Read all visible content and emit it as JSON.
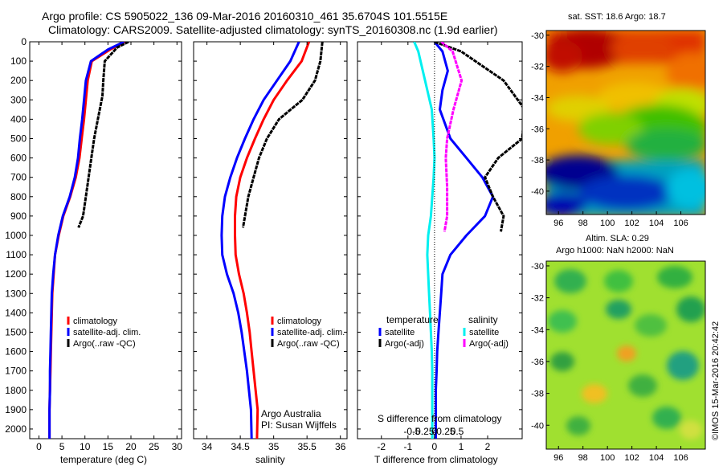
{
  "titles": {
    "line1": "Argo profile: CS 5905022_136 09-Mar-2016 20160310_461 35.6704S 101.5515E",
    "line2": "Climatology: CARS2009. Satellite-adjusted climatology: synTS_20160308.nc (1.9d earlier)"
  },
  "colors": {
    "climatology": "#ff0000",
    "satellite": "#0000ff",
    "argo": "#000000",
    "s_satellite": "#00f0f0",
    "s_argo": "#ff00ff"
  },
  "depth_ticks": [
    "0",
    "100",
    "200",
    "300",
    "400",
    "500",
    "600",
    "700",
    "800",
    "900",
    "1000",
    "1100",
    "1200",
    "1300",
    "1400",
    "1500",
    "1600",
    "1700",
    "1800",
    "1900",
    "2000"
  ],
  "temp_panel": {
    "xlabel": "temperature (deg C)",
    "xticks": [
      "0",
      "5",
      "10",
      "15",
      "20",
      "25",
      "30"
    ],
    "legend": [
      "climatology",
      "satellite-adj. clim.",
      "Argo(..raw -QC)"
    ]
  },
  "sal_panel": {
    "xlabel": "salinity",
    "xticks": [
      "34",
      "34.5",
      "35",
      "35.5",
      "36"
    ],
    "legend": [
      "climatology",
      "satellite-adj. clim.",
      "Argo(..raw -QC)"
    ],
    "credit1": "Argo Australia",
    "credit2": "PI: Susan Wijffels"
  },
  "diff_panel": {
    "xlabel": "T difference from climatology",
    "xticks": [
      "-2",
      "-1",
      "0",
      "1",
      "2"
    ],
    "top_label": "S difference from climatology",
    "top_ticks": [
      "-0.5",
      "-0.25",
      "0",
      "0.25",
      "0.5"
    ],
    "legend_t_title": "temperature",
    "legend_s_title": "salinity",
    "legend_t": [
      "satellite",
      "Argo(-adj)"
    ],
    "legend_s": [
      "satellite",
      "Argo(-adj)"
    ]
  },
  "sst_map": {
    "title": "sat. SST: 18.6 Argo: 18.7",
    "yticks": [
      "-30",
      "-32",
      "-34",
      "-36",
      "-38",
      "-40"
    ],
    "xticks": [
      "96",
      "98",
      "100",
      "102",
      "104",
      "106"
    ]
  },
  "sla_map": {
    "title1": "Altim. SLA: 0.29",
    "title2": "Argo h1000: NaN h2000: NaN",
    "yticks": [
      "-30",
      "-32",
      "-34",
      "-36",
      "-38",
      "-40"
    ],
    "xticks": [
      "96",
      "98",
      "100",
      "102",
      "104",
      "106"
    ]
  },
  "watermark": "©IMOS 15-Mar-2016 20:42:42",
  "chart_data": [
    {
      "type": "line",
      "title": "",
      "xlabel": "temperature (deg C)",
      "ylabel": "",
      "xlim": [
        -2,
        31
      ],
      "ylim": [
        2050,
        0
      ],
      "series": [
        {
          "name": "climatology",
          "x": [
            18.8,
            15.5,
            11.5,
            10.6,
            10.2,
            9.8,
            9.3,
            8.8,
            8.0,
            6.8,
            5.3,
            4.3,
            3.5,
            3.2,
            2.9,
            2.8,
            2.7,
            2.6,
            2.5,
            2.4,
            2.3,
            2.3
          ],
          "y": [
            0,
            40,
            100,
            200,
            300,
            400,
            500,
            600,
            700,
            800,
            900,
            1000,
            1100,
            1200,
            1300,
            1400,
            1500,
            1600,
            1700,
            1800,
            1900,
            2050
          ]
        },
        {
          "name": "satellite-adj. clim.",
          "x": [
            18.5,
            15.0,
            11.3,
            10.2,
            9.8,
            9.4,
            8.9,
            8.5,
            7.8,
            6.7,
            5.2,
            4.2,
            3.5,
            3.1,
            2.8,
            2.7,
            2.6,
            2.5,
            2.4,
            2.4,
            2.3,
            2.3
          ],
          "y": [
            0,
            40,
            100,
            200,
            300,
            400,
            500,
            600,
            700,
            800,
            900,
            1000,
            1100,
            1200,
            1300,
            1400,
            1500,
            1600,
            1700,
            1800,
            1900,
            2050
          ]
        },
        {
          "name": "Argo(..raw -QC)",
          "x": [
            19.5,
            17.0,
            14.3,
            14.0,
            13.8,
            12.8,
            12.0,
            11.4,
            10.8,
            10.2,
            9.6,
            8.6
          ],
          "y": [
            0,
            30,
            100,
            200,
            280,
            400,
            500,
            600,
            700,
            800,
            900,
            960
          ]
        }
      ]
    },
    {
      "type": "line",
      "title": "",
      "xlabel": "salinity",
      "ylabel": "",
      "xlim": [
        33.8,
        36.1
      ],
      "ylim": [
        2050,
        0
      ],
      "series": [
        {
          "name": "climatology",
          "x": [
            35.53,
            35.42,
            35.2,
            35.0,
            34.85,
            34.72,
            34.6,
            34.5,
            34.44,
            34.42,
            34.42,
            34.43,
            34.48,
            34.55,
            34.6,
            34.64,
            34.67,
            34.7,
            34.73,
            34.76,
            34.75
          ],
          "y": [
            0,
            100,
            200,
            300,
            400,
            500,
            600,
            700,
            800,
            900,
            1000,
            1100,
            1200,
            1300,
            1400,
            1500,
            1600,
            1700,
            1800,
            1900,
            2050
          ]
        },
        {
          "name": "satellite-adj. clim.",
          "x": [
            35.38,
            35.25,
            35.05,
            34.85,
            34.7,
            34.57,
            34.45,
            34.35,
            34.27,
            34.23,
            34.22,
            34.23,
            34.3,
            34.4,
            34.47,
            34.52,
            34.56,
            34.6,
            34.63,
            34.66,
            34.67
          ],
          "y": [
            0,
            100,
            200,
            300,
            400,
            500,
            600,
            700,
            800,
            900,
            1000,
            1100,
            1200,
            1300,
            1400,
            1500,
            1600,
            1700,
            1800,
            1900,
            2050
          ]
        },
        {
          "name": "Argo(..raw -QC)",
          "x": [
            35.73,
            35.7,
            35.62,
            35.43,
            35.08,
            34.9,
            34.78,
            34.7,
            34.62,
            34.54
          ],
          "y": [
            0,
            100,
            200,
            300,
            400,
            500,
            600,
            700,
            800,
            960
          ]
        }
      ]
    },
    {
      "type": "line",
      "title": "",
      "xlabel": "T difference from climatology",
      "ylabel": "",
      "xlim": [
        -2.9,
        3.3
      ],
      "ylim": [
        2050,
        0
      ],
      "series": [
        {
          "name": "satellite",
          "x": [
            0.0,
            0.3,
            0.5,
            0.3,
            0.2,
            0.6,
            1.2,
            1.8,
            2.2,
            1.9,
            1.2,
            0.6,
            0.3,
            0.25,
            0.2,
            0.15,
            0.1,
            0.08,
            0.05,
            0.05
          ],
          "y": [
            0,
            50,
            150,
            250,
            350,
            500,
            600,
            700,
            800,
            900,
            1000,
            1100,
            1200,
            1300,
            1400,
            1500,
            1600,
            1700,
            1800,
            2050
          ]
        },
        {
          "name": "Argo(-adj)",
          "x": [
            0.0,
            1.0,
            2.6,
            3.4,
            3.3,
            2.4,
            1.9,
            2.2,
            2.6,
            2.5
          ],
          "y": [
            0,
            50,
            200,
            350,
            500,
            600,
            700,
            800,
            900,
            980
          ]
        },
        {
          "name": "S satellite",
          "x": [
            -0.45,
            -0.36,
            -0.26,
            -0.16,
            -0.06,
            -0.02,
            0.0,
            -0.02,
            -0.05,
            -0.08,
            -0.14,
            -0.16,
            -0.14,
            -0.12,
            -0.1,
            -0.08,
            -0.06,
            -0.05,
            -0.05,
            -0.05
          ],
          "y": [
            0,
            50,
            150,
            250,
            350,
            500,
            600,
            700,
            800,
            900,
            1000,
            1100,
            1200,
            1300,
            1400,
            1500,
            1600,
            1700,
            1800,
            2050
          ]
        },
        {
          "name": "S Argo(-adj)",
          "x": [
            0.15,
            0.4,
            0.6,
            0.42,
            0.28,
            0.25,
            0.28,
            0.28,
            0.22
          ],
          "y": [
            0,
            50,
            200,
            350,
            500,
            600,
            750,
            900,
            980
          ]
        }
      ]
    },
    {
      "type": "heatmap",
      "title": "sat. SST: 18.6 Argo: 18.7",
      "xlim": [
        95,
        108
      ],
      "ylim": [
        -41.5,
        -29.7
      ],
      "x_ticks": [
        96,
        98,
        100,
        102,
        104,
        106
      ],
      "y_ticks": [
        -30,
        -32,
        -34,
        -36,
        -38,
        -40
      ]
    },
    {
      "type": "heatmap",
      "title": "Altim. SLA: 0.29",
      "xlim": [
        95,
        108
      ],
      "ylim": [
        -41.5,
        -29.7
      ],
      "x_ticks": [
        96,
        98,
        100,
        102,
        104,
        106
      ],
      "y_ticks": [
        -30,
        -32,
        -34,
        -36,
        -38,
        -40
      ]
    }
  ]
}
